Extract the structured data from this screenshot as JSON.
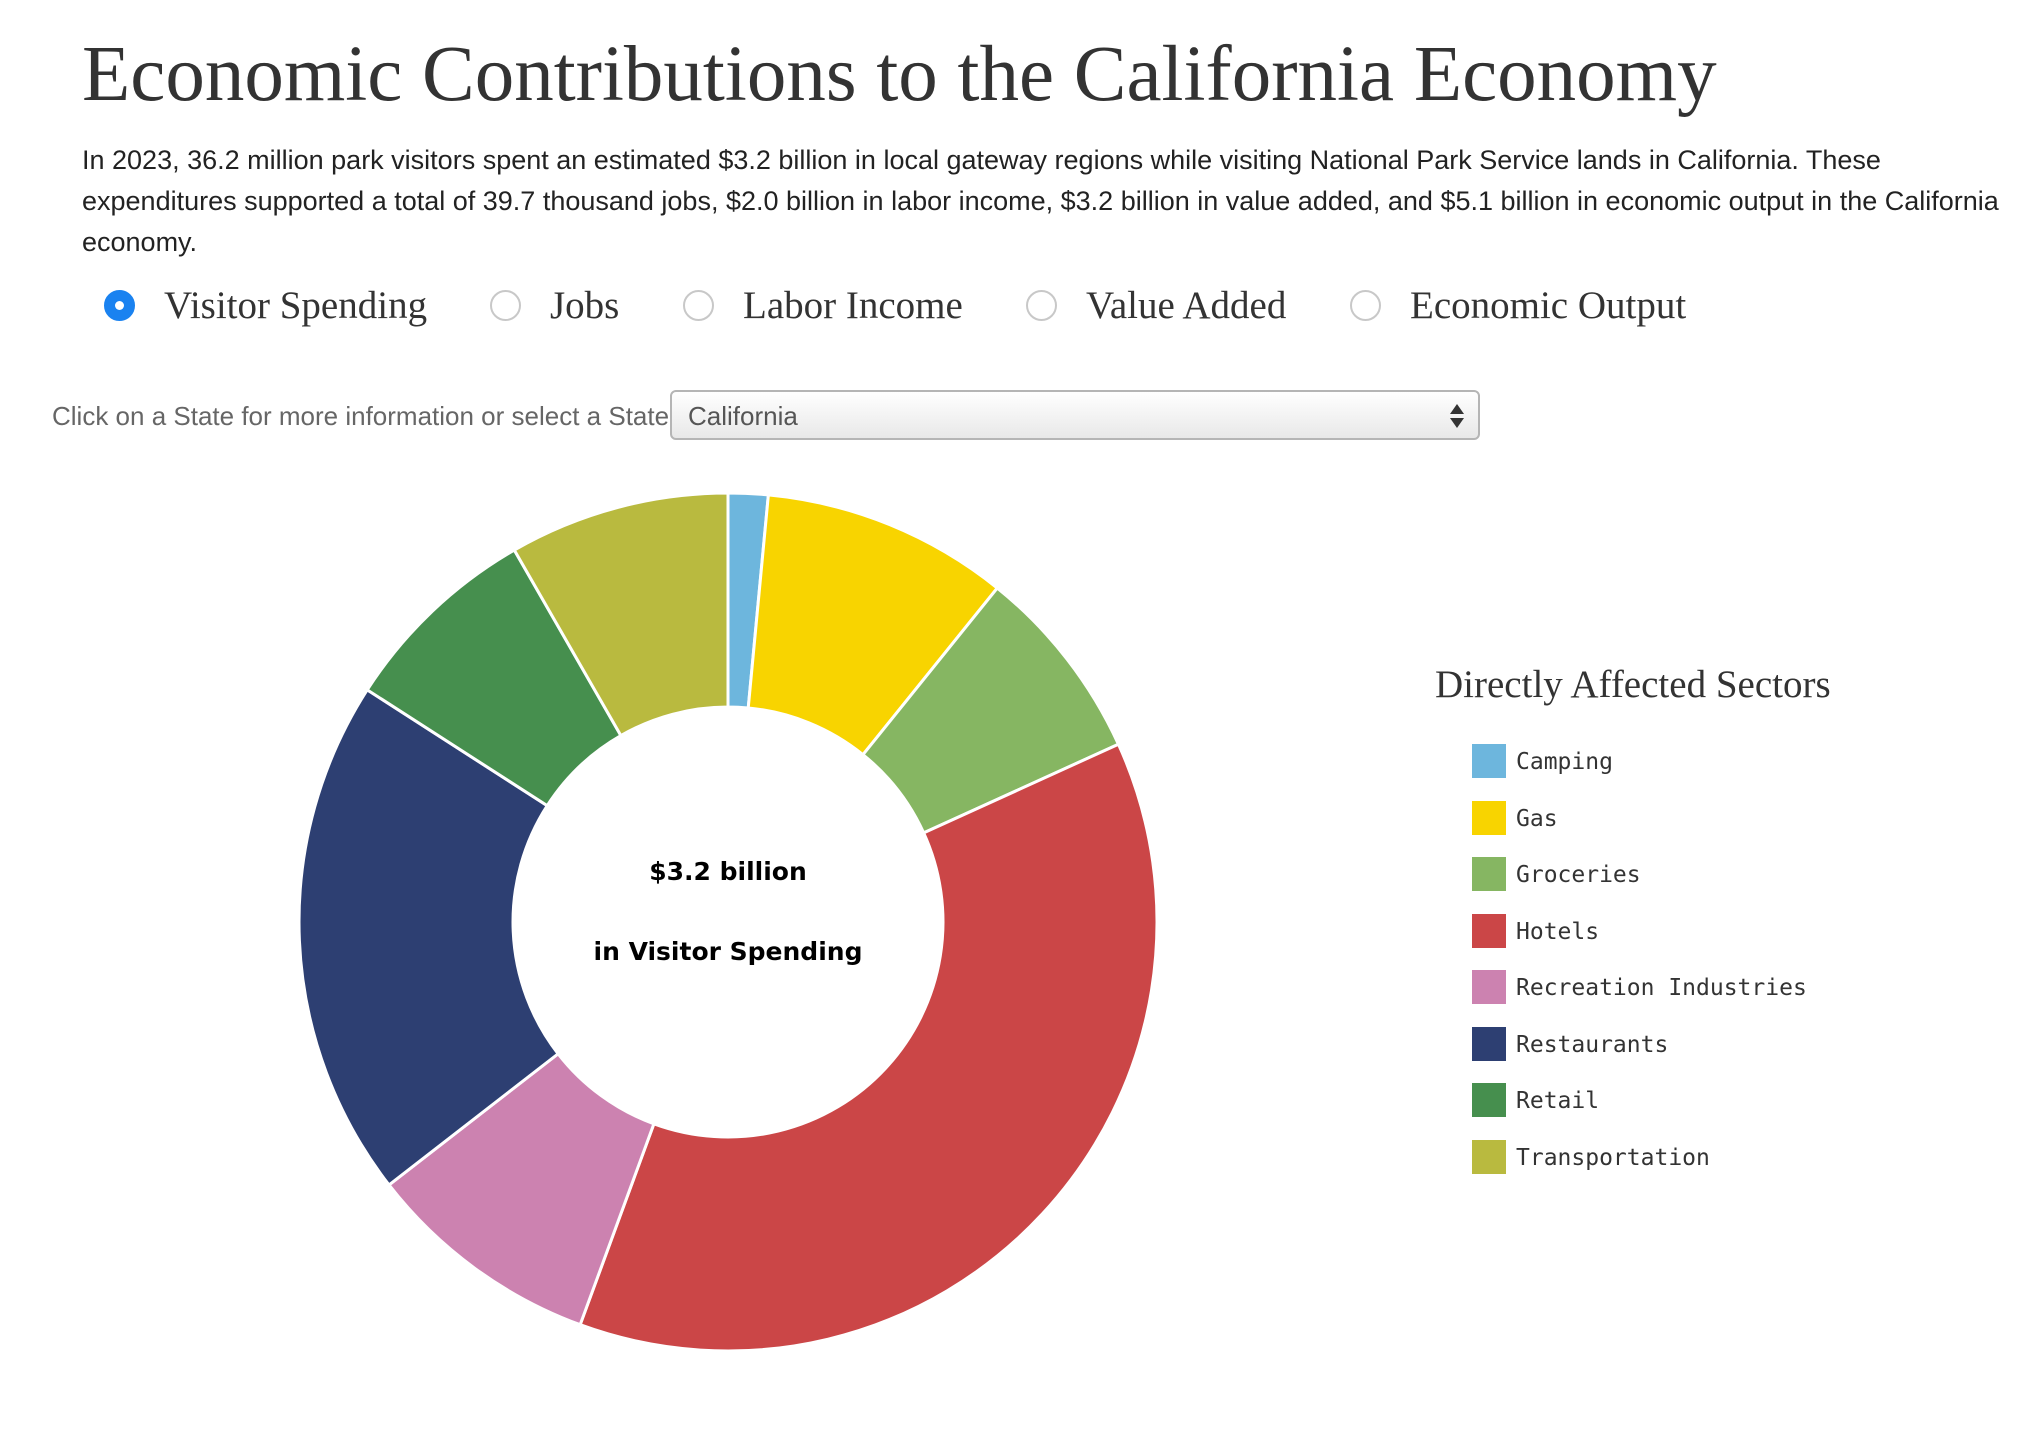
{
  "page": {
    "title": "Economic Contributions to the California Economy",
    "intro": "In 2023, 36.2 million park visitors spent an estimated $3.2 billion in local gateway regions while visiting National Park Service lands in California. These expenditures supported a total of 39.7 thousand jobs, $2.0 billion in labor income, $3.2 billion in value added, and $5.1 billion in economic output in the California economy."
  },
  "metric_options": [
    {
      "label": "Visitor Spending",
      "checked": true
    },
    {
      "label": "Jobs",
      "checked": false
    },
    {
      "label": "Labor Income",
      "checked": false
    },
    {
      "label": "Value Added",
      "checked": false
    },
    {
      "label": "Economic Output",
      "checked": false
    }
  ],
  "state_selector": {
    "label": "Click on a State for more information or select a State",
    "value": "California"
  },
  "chart_data": {
    "type": "pie",
    "donut": true,
    "center_text": [
      "$3.2 billion",
      "in Visitor Spending"
    ],
    "legend_title": "Directly Affected Sectors",
    "legend_placement": "right",
    "categories": [
      "Camping",
      "Gas",
      "Groceries",
      "Hotels",
      "Recreation Industries",
      "Restaurants",
      "Retail",
      "Transportation"
    ],
    "values": [
      1.5,
      9.3,
      7.4,
      37.4,
      8.9,
      19.6,
      7.6,
      8.3
    ],
    "unit": "percent of visitor spending",
    "colors": [
      "#6db6dd",
      "#f8d400",
      "#86b662",
      "#cb4647",
      "#cc82b0",
      "#2d3f72",
      "#468f4e",
      "#b9ba3f"
    ]
  }
}
